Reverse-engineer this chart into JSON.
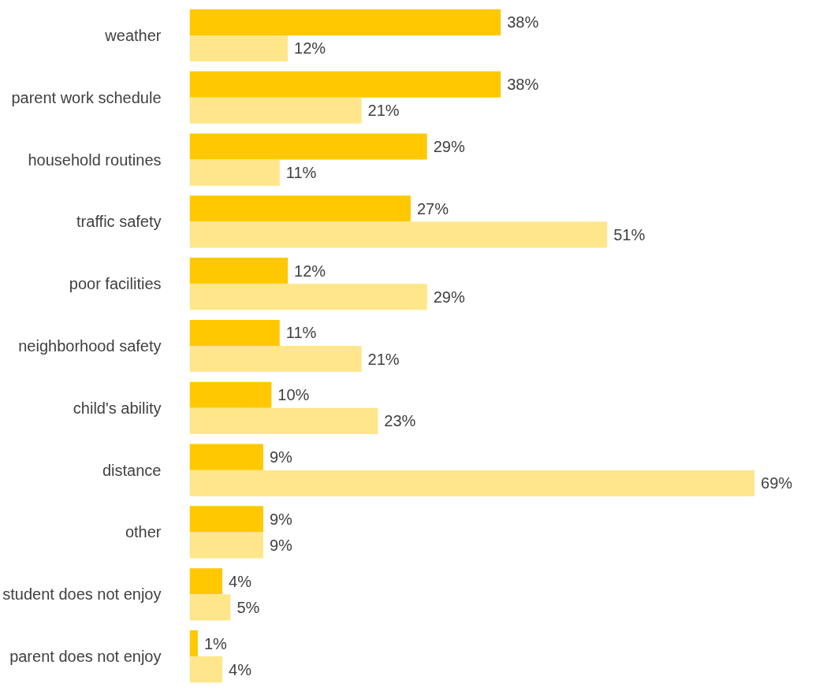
{
  "chart_data": {
    "type": "bar",
    "orientation": "horizontal",
    "categories": [
      "weather",
      "parent work schedule",
      "household routines",
      "traffic safety",
      "poor facilities",
      "neighborhood safety",
      "child's ability",
      "distance",
      "other",
      "student does not enjoy",
      "parent does not enjoy"
    ],
    "series": [
      {
        "color": "#ffc800",
        "values": [
          38,
          38,
          29,
          27,
          12,
          11,
          10,
          9,
          9,
          4,
          1
        ],
        "value_labels": [
          "38%",
          "38%",
          "29%",
          "27%",
          "12%",
          "11%",
          "10%",
          "9%",
          "9%",
          "4%",
          "1%"
        ]
      },
      {
        "color": "#ffe68a",
        "values": [
          12,
          21,
          11,
          51,
          29,
          21,
          23,
          69,
          9,
          5,
          4
        ],
        "value_labels": [
          "12%",
          "21%",
          "11%",
          "51%",
          "29%",
          "21%",
          "23%",
          "69%",
          "9%",
          "5%",
          "4%"
        ]
      }
    ]
  }
}
